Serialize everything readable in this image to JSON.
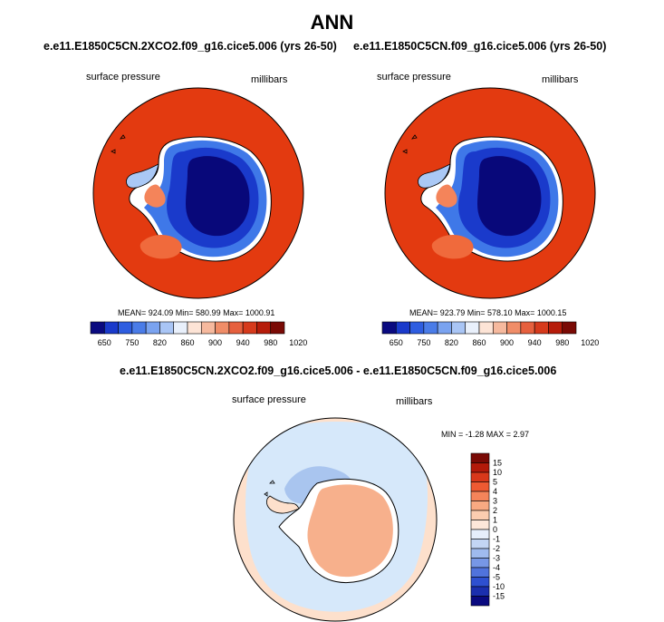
{
  "title": "ANN",
  "colors": {
    "map_outside": "#e33a10",
    "deep_ice": "#08087a",
    "mid_ice": "#1a3acb",
    "light_ice": "#3f78e8",
    "pale_ice": "#aac8f5",
    "diff_ocean": "#d6e8fa",
    "diff_ice": "#f7b08c",
    "diff_lightblue": "#a9c5ef",
    "diff_peach": "#fde0cc"
  },
  "chart_data": [
    {
      "type": "heatmap",
      "title": "e.e11.E1850C5CN.2XCO2.f09_g16.cice5.006 (yrs 26-50)",
      "variable_label": "surface pressure",
      "units_label": "millibars",
      "stats_text": "MEAN= 924.09  Min= 580.99  Max= 1000.91",
      "mean": 924.09,
      "min": 580.99,
      "max": 1000.91,
      "colorbar": {
        "orientation": "horizontal",
        "colors": [
          "#0a0a80",
          "#1a3acb",
          "#2e5de0",
          "#4a7ce8",
          "#7aa3f0",
          "#a9c5f5",
          "#e9f0fb",
          "#fde4d6",
          "#f6b99e",
          "#f08d68",
          "#e6603e",
          "#d63a1c",
          "#b61c0a",
          "#7a0a05"
        ],
        "tick_labels": [
          "650",
          "750",
          "820",
          "860",
          "900",
          "940",
          "980",
          "1020"
        ]
      }
    },
    {
      "type": "heatmap",
      "title": "e.e11.E1850C5CN.f09_g16.cice5.006 (yrs 26-50)",
      "variable_label": "surface pressure",
      "units_label": "millibars",
      "stats_text": "MEAN= 923.79  Min= 578.10  Max= 1000.15",
      "mean": 923.79,
      "min": 578.1,
      "max": 1000.15,
      "colorbar": {
        "orientation": "horizontal",
        "colors": [
          "#0a0a80",
          "#1a3acb",
          "#2e5de0",
          "#4a7ce8",
          "#7aa3f0",
          "#a9c5f5",
          "#e9f0fb",
          "#fde4d6",
          "#f6b99e",
          "#f08d68",
          "#e6603e",
          "#d63a1c",
          "#b61c0a",
          "#7a0a05"
        ],
        "tick_labels": [
          "650",
          "750",
          "820",
          "860",
          "900",
          "940",
          "980",
          "1020"
        ]
      }
    },
    {
      "type": "heatmap",
      "title": "e.e11.E1850C5CN.2XCO2.f09_g16.cice5.006 - e.e11.E1850C5CN.f09_g16.cice5.006",
      "variable_label": "surface pressure",
      "units_label": "millibars",
      "stats_text": "MIN =  -1.28 MAX =   2.97",
      "min": -1.28,
      "max": 2.97,
      "colorbar": {
        "orientation": "vertical",
        "colors_top_to_bottom": [
          "#7a0a05",
          "#b31a0a",
          "#d8381a",
          "#ee5a32",
          "#f4845a",
          "#f8a982",
          "#fbcdb0",
          "#fde8da",
          "#e6eefb",
          "#c3d5f4",
          "#9fbaee",
          "#7797e6",
          "#5073dc",
          "#2e50d0",
          "#1b2fae",
          "#0a0a80"
        ],
        "tick_labels_top_to_bottom": [
          "15",
          "10",
          "5",
          "4",
          "3",
          "2",
          "1",
          "0",
          "-1",
          "-2",
          "-3",
          "-4",
          "-5",
          "-10",
          "-15"
        ]
      }
    }
  ]
}
